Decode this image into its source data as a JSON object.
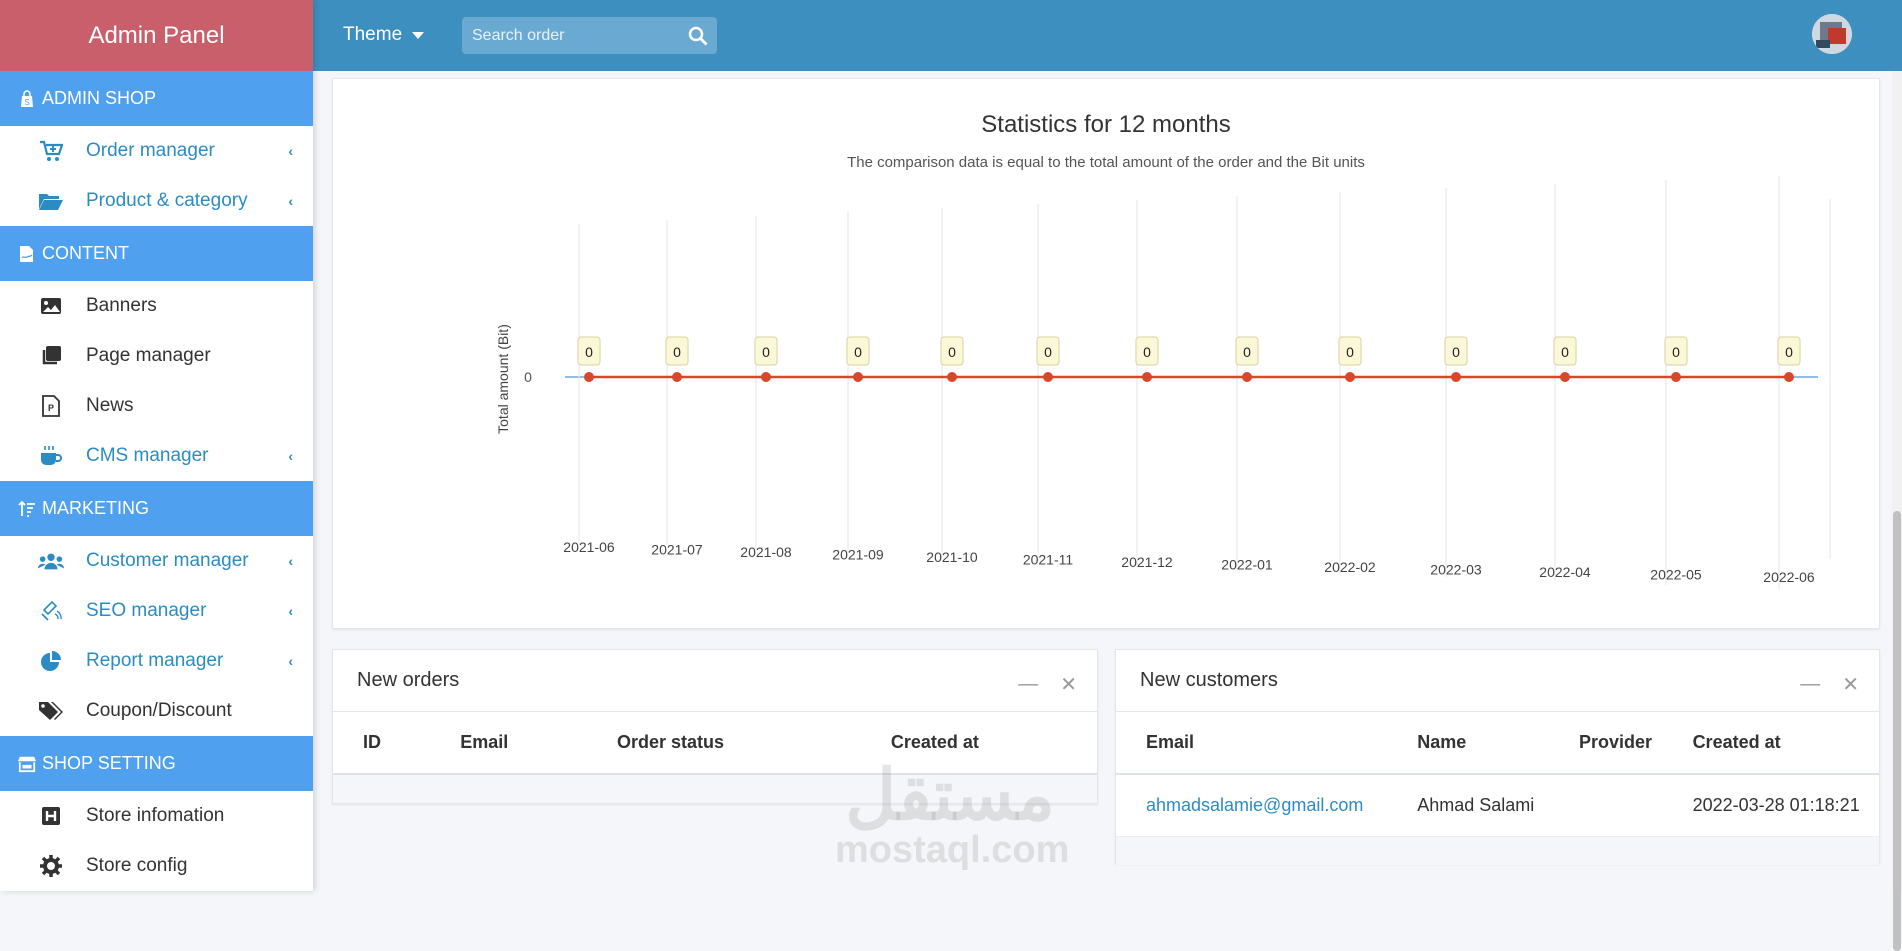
{
  "sidebar": {
    "brand": "Admin Panel",
    "sections": [
      {
        "label": "ADMIN SHOP",
        "items": [
          {
            "label": "Order manager"
          },
          {
            "label": "Product & category"
          }
        ]
      },
      {
        "label": "CONTENT",
        "items": [
          {
            "label": "Banners"
          },
          {
            "label": "Page manager"
          },
          {
            "label": "News"
          },
          {
            "label": "CMS manager"
          }
        ]
      },
      {
        "label": "MARKETING",
        "items": [
          {
            "label": "Customer manager"
          },
          {
            "label": "SEO manager"
          },
          {
            "label": "Report manager"
          },
          {
            "label": "Coupon/Discount"
          }
        ]
      },
      {
        "label": "SHOP SETTING",
        "items": [
          {
            "label": "Store infomation"
          },
          {
            "label": "Store config"
          }
        ]
      }
    ]
  },
  "topbar": {
    "theme_label": "Theme",
    "search_placeholder": "Search order"
  },
  "chart_data": {
    "type": "line",
    "title": "Statistics for 12 months",
    "subtitle": "The comparison data is equal to the total amount of the order and the Bit units",
    "ylabel": "Total amount (Bit)",
    "y_tick": "0",
    "categories": [
      "2021-06",
      "2021-07",
      "2021-08",
      "2021-09",
      "2021-10",
      "2021-11",
      "2021-12",
      "2022-01",
      "2022-02",
      "2022-03",
      "2022-04",
      "2022-05",
      "2022-06"
    ],
    "values": [
      0,
      0,
      0,
      0,
      0,
      0,
      0,
      0,
      0,
      0,
      0,
      0,
      0
    ],
    "line_color": "#d9472b",
    "label_bg": "#fbf8d8"
  },
  "orders": {
    "title": "New orders",
    "columns": [
      "ID",
      "Email",
      "Order status",
      "Created at"
    ]
  },
  "customers": {
    "title": "New customers",
    "columns": [
      "Email",
      "Name",
      "Provider",
      "Created at"
    ],
    "rows": [
      {
        "email": "ahmadsalamie@gmail.com",
        "name": "Ahmad Salami",
        "provider": "",
        "created_at": "2022-03-28 01:18:21"
      }
    ]
  },
  "watermark": {
    "ar": "مستقل",
    "en": "mostaql.com"
  }
}
